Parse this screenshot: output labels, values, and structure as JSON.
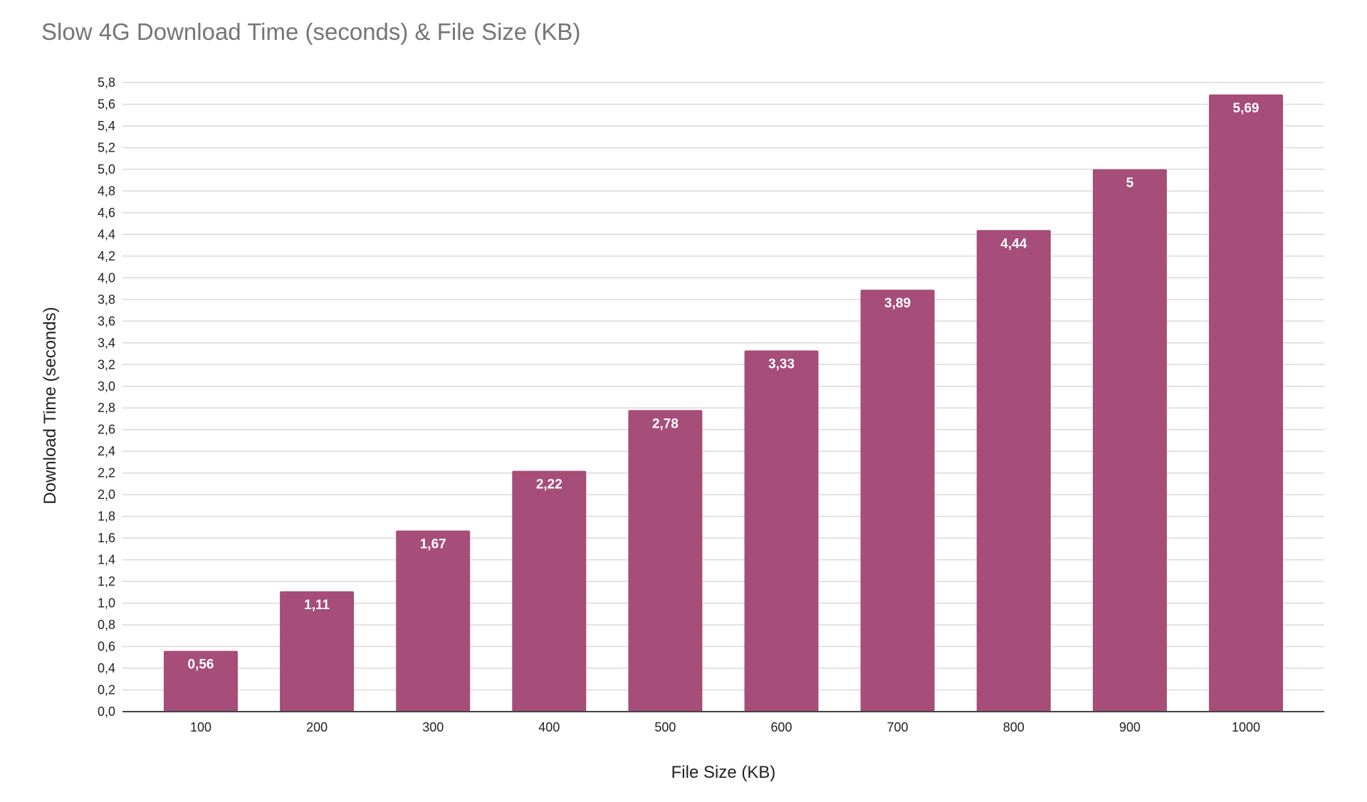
{
  "chart_data": {
    "type": "bar",
    "title": "Slow 4G Download Time (seconds) & File Size (KB)",
    "xlabel": "File Size (KB)",
    "ylabel": "Download Time (seconds)",
    "categories": [
      "100",
      "200",
      "300",
      "400",
      "500",
      "600",
      "700",
      "800",
      "900",
      "1000"
    ],
    "values": [
      0.56,
      1.11,
      1.67,
      2.22,
      2.78,
      3.33,
      3.89,
      4.44,
      5,
      5.69
    ],
    "data_labels": [
      "0,56",
      "1,11",
      "1,67",
      "2,22",
      "2,78",
      "3,33",
      "3,89",
      "4,44",
      "5",
      "5,69"
    ],
    "ylim": [
      0,
      5.8
    ],
    "yticks": [
      "0,0",
      "0,2",
      "0,4",
      "0,6",
      "0,8",
      "1,0",
      "1,2",
      "1,4",
      "1,6",
      "1,8",
      "2,0",
      "2,2",
      "2,4",
      "2,6",
      "2,8",
      "3,0",
      "3,2",
      "3,4",
      "3,6",
      "3,8",
      "4,0",
      "4,2",
      "4,4",
      "4,6",
      "4,8",
      "5,0",
      "5,2",
      "5,4",
      "5,6",
      "5,8"
    ],
    "grid": true,
    "legend": "none",
    "bar_color": "#a64d79"
  }
}
